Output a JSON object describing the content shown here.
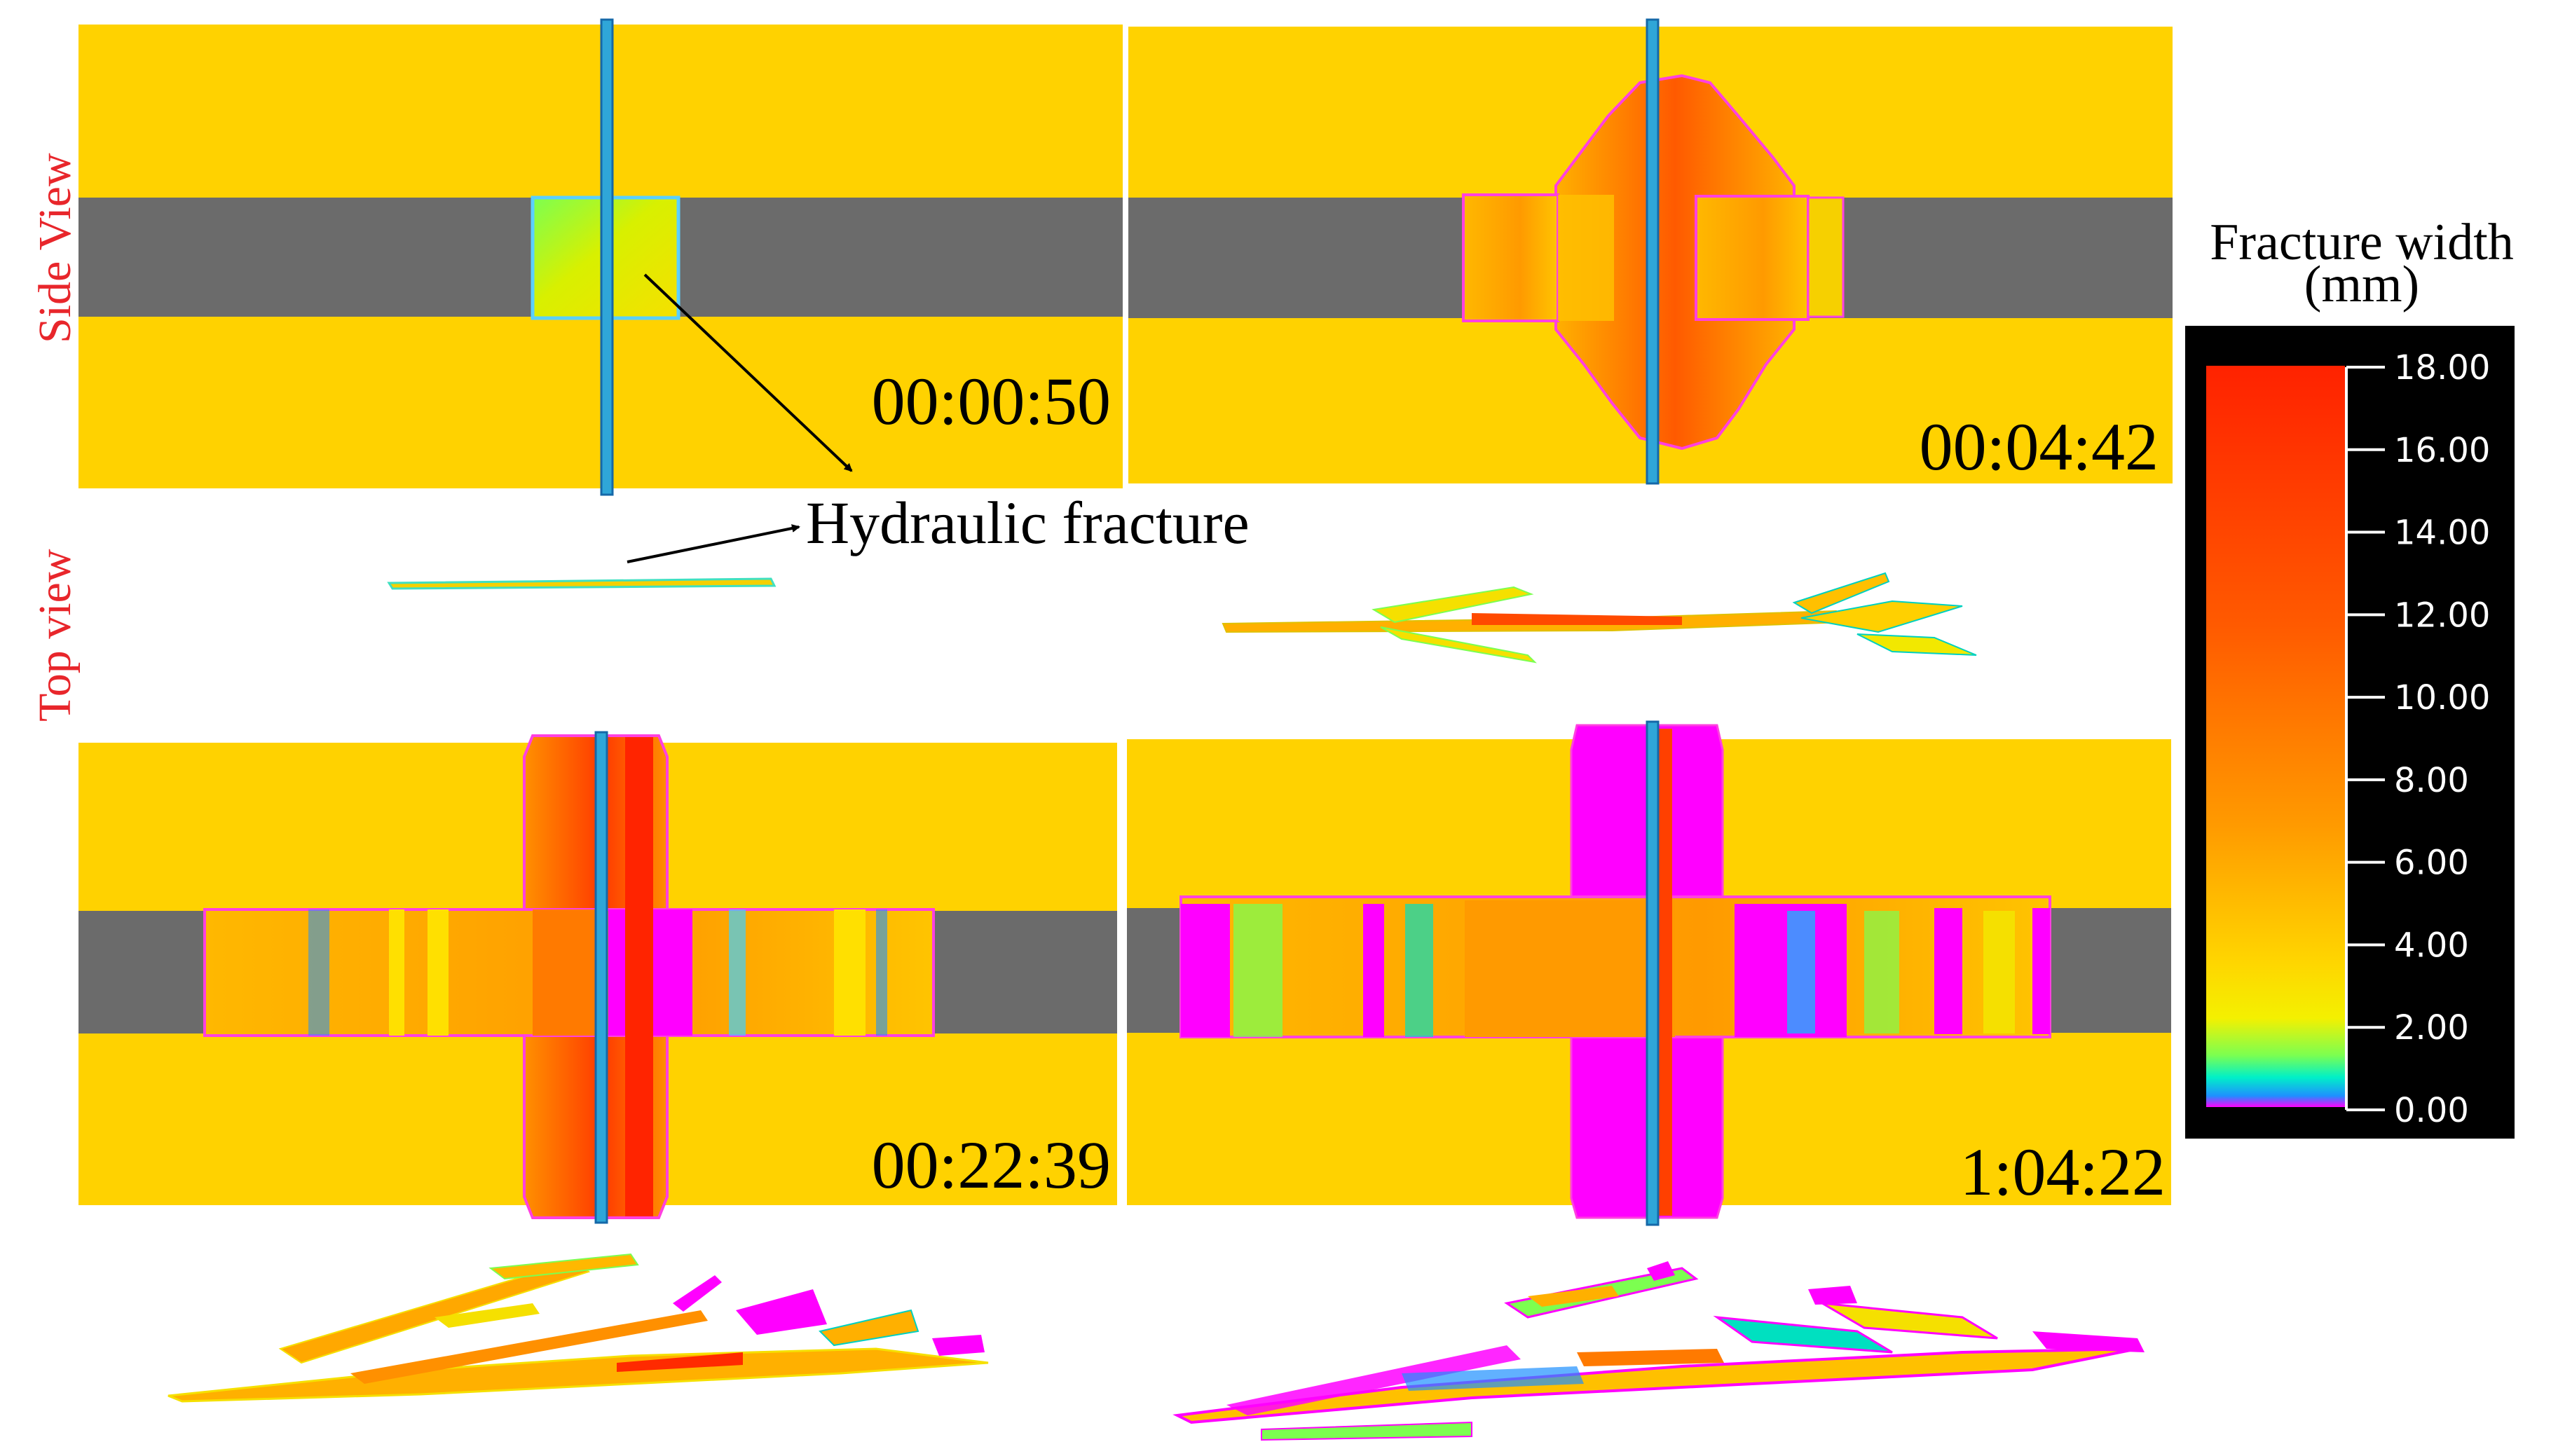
{
  "labels": {
    "side_view": "Side View",
    "top_view": "Top view",
    "annotation": "Hydraulic fracture"
  },
  "panels": [
    {
      "id": "p1",
      "time": "00:00:50"
    },
    {
      "id": "p2",
      "time": "00:04:42"
    },
    {
      "id": "p3",
      "time": "00:22:39"
    },
    {
      "id": "p4",
      "time": "1:04:22"
    }
  ],
  "colorbar": {
    "title_line1": "Fracture width",
    "title_line2": "(mm)",
    "ticks": [
      "18.00",
      "16.00",
      "14.00",
      "12.00",
      "10.00",
      "8.00",
      "6.00",
      "4.00",
      "2.00",
      "0.00"
    ]
  },
  "colors": {
    "formation": "#FFD200",
    "reservoir": "#6B6B6B",
    "wellbore": "#2FA6D8",
    "label_red": "#E8262B",
    "high": "#FF2A00",
    "mid": "#FF8A00",
    "low": "#F5E400",
    "zero": "#FF00FF"
  }
}
